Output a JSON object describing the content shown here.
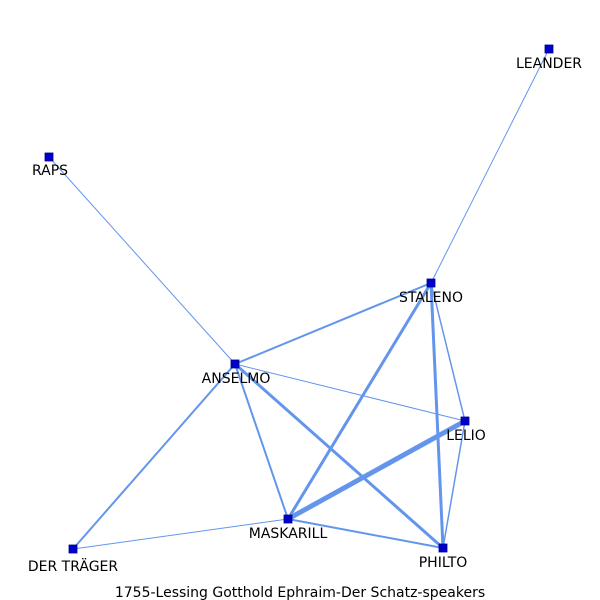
{
  "title": "1755-Lessing  Gotthold  Ephraim-Der  Schatz-speakers",
  "colors": {
    "edge": "#6495ed",
    "node_fill": "#0000cd",
    "node_stroke": "#00008b"
  },
  "nodes": [
    {
      "id": "LEANDER",
      "label": "LEANDER"
    },
    {
      "id": "RAPS",
      "label": "RAPS"
    },
    {
      "id": "STALENO",
      "label": "STALENO"
    },
    {
      "id": "ANSELMO",
      "label": "ANSELMO"
    },
    {
      "id": "LELIO",
      "label": "LELIO"
    },
    {
      "id": "MASKARILL",
      "label": "MASKARILL"
    },
    {
      "id": "PHILTO",
      "label": "PHILTO"
    },
    {
      "id": "DER_TRAEGER",
      "label": "DER TRÄGER"
    }
  ],
  "edges": [
    {
      "source": "LEANDER",
      "target": "STALENO",
      "weight": 1
    },
    {
      "source": "RAPS",
      "target": "ANSELMO",
      "weight": 1
    },
    {
      "source": "ANSELMO",
      "target": "STALENO",
      "weight": 2
    },
    {
      "source": "ANSELMO",
      "target": "LELIO",
      "weight": 1
    },
    {
      "source": "ANSELMO",
      "target": "MASKARILL",
      "weight": 2
    },
    {
      "source": "ANSELMO",
      "target": "PHILTO",
      "weight": 3
    },
    {
      "source": "ANSELMO",
      "target": "DER_TRAEGER",
      "weight": 2
    },
    {
      "source": "STALENO",
      "target": "MASKARILL",
      "weight": 3
    },
    {
      "source": "STALENO",
      "target": "PHILTO",
      "weight": 3
    },
    {
      "source": "STALENO",
      "target": "LELIO",
      "weight": 1.5
    },
    {
      "source": "LELIO",
      "target": "MASKARILL",
      "weight": 5
    },
    {
      "source": "LELIO",
      "target": "PHILTO",
      "weight": 1.5
    },
    {
      "source": "MASKARILL",
      "target": "PHILTO",
      "weight": 2
    },
    {
      "source": "MASKARILL",
      "target": "DER_TRAEGER",
      "weight": 1
    }
  ]
}
